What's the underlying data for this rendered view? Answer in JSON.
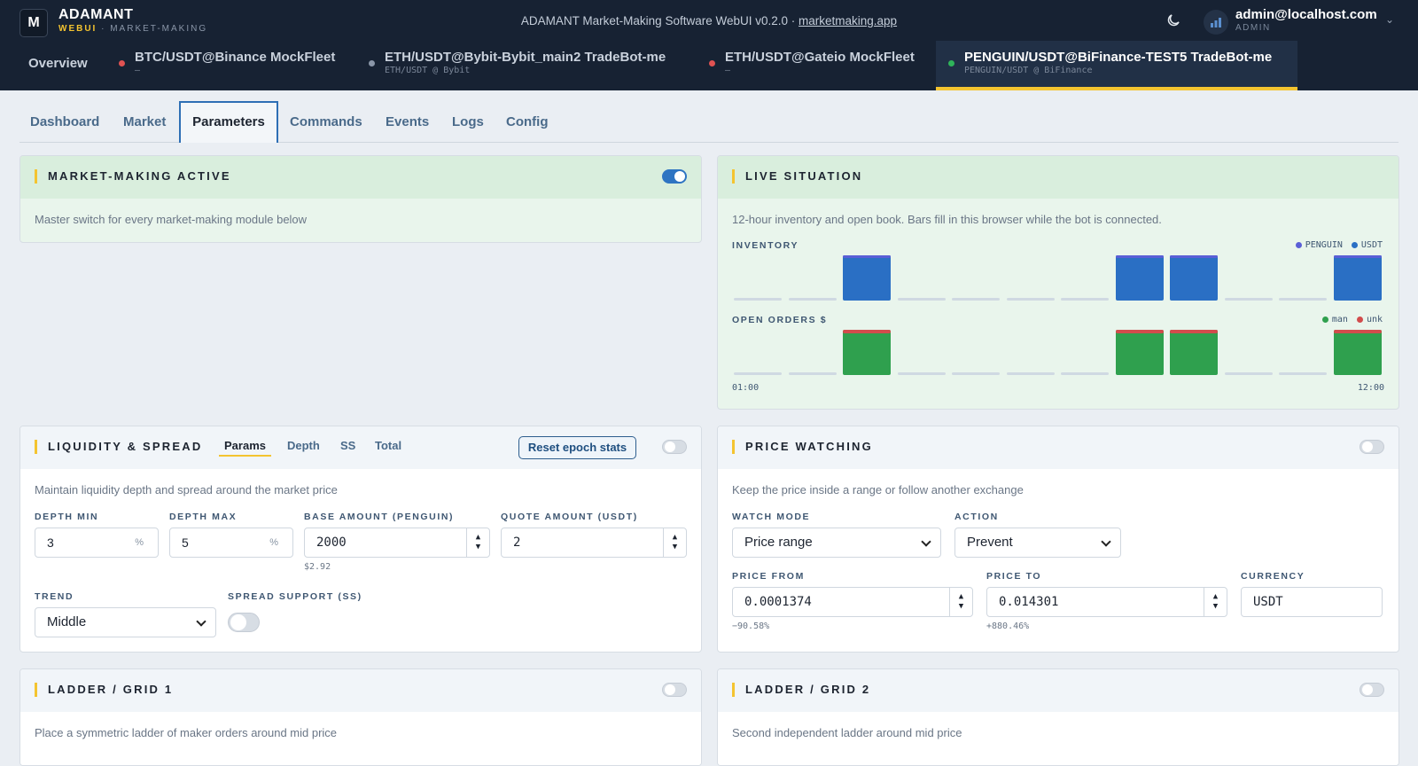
{
  "header": {
    "logo_text": "M",
    "brand": "ADAMANT",
    "brand_sub_highlight": "WEBUI",
    "brand_sub_rest": " · MARKET-MAKING",
    "title_prefix": "ADAMANT Market-Making Software WebUI v0.2.0 · ",
    "title_link": "marketmaking.app",
    "user_name": "admin@localhost.com",
    "user_role": "ADMIN"
  },
  "pair_tabs": {
    "overview": "Overview",
    "items": [
      {
        "title": "BTC/USDT@Binance MockFleet",
        "sub": "—",
        "status_color": "#e05252"
      },
      {
        "title": "ETH/USDT@Bybit-Bybit_main2 TradeBot-me",
        "sub": "ETH/USDT @ Bybit",
        "status_color": "#8a96a8"
      },
      {
        "title": "ETH/USDT@Gateio MockFleet",
        "sub": "—",
        "status_color": "#e05252"
      },
      {
        "title": "PENGUIN/USDT@BiFinance-TEST5 TradeBot-me",
        "sub": "PENGUIN/USDT @ BiFinance",
        "status_color": "#2fb45a"
      }
    ]
  },
  "sub_tabs": [
    "Dashboard",
    "Market",
    "Parameters",
    "Commands",
    "Events",
    "Logs",
    "Config"
  ],
  "mm_active": {
    "title": "MARKET-MAKING ACTIVE",
    "desc": "Master switch for every market-making module below",
    "enabled": true
  },
  "live": {
    "title": "LIVE SITUATION",
    "desc": "12-hour inventory and open book. Bars fill in this browser while the bot is connected.",
    "inventory_label": "INVENTORY",
    "orders_label": "OPEN ORDERS $",
    "legend_inv": [
      {
        "name": "PENGUIN",
        "color": "#5a5fd6"
      },
      {
        "name": "USDT",
        "color": "#2a6fc4"
      }
    ],
    "legend_orders": [
      {
        "name": "man",
        "color": "#2fa04e"
      },
      {
        "name": "unk",
        "color": "#d24c4c"
      }
    ],
    "time_start": "01:00",
    "time_end": "12:00"
  },
  "chart_data": [
    {
      "type": "bar",
      "title": "INVENTORY",
      "categories": [
        "01:00",
        "",
        "",
        "",
        "",
        "",
        "",
        "",
        "",
        "",
        "",
        "12:00"
      ],
      "series": [
        {
          "name": "USDT",
          "values": [
            0,
            0,
            1,
            0,
            0,
            0,
            0,
            1,
            1,
            0,
            0,
            1
          ]
        },
        {
          "name": "PENGUIN",
          "values": [
            0,
            0,
            0.05,
            0,
            0,
            0,
            0,
            0.05,
            0.05,
            0,
            0,
            0.05
          ]
        }
      ]
    },
    {
      "type": "bar",
      "title": "OPEN ORDERS $",
      "categories": [
        "01:00",
        "",
        "",
        "",
        "",
        "",
        "",
        "",
        "",
        "",
        "",
        "12:00"
      ],
      "series": [
        {
          "name": "man",
          "values": [
            0,
            0,
            1,
            0,
            0,
            0,
            0,
            1,
            1,
            0,
            0,
            1
          ]
        },
        {
          "name": "unk",
          "values": [
            0,
            0,
            0.08,
            0,
            0,
            0,
            0,
            0.08,
            0.08,
            0,
            0,
            0.08
          ]
        }
      ]
    }
  ],
  "liquidity": {
    "title": "LIQUIDITY & SPREAD",
    "tabs": [
      "Params",
      "Depth",
      "SS",
      "Total"
    ],
    "reset_label": "Reset epoch stats",
    "desc": "Maintain liquidity depth and spread around the market price",
    "depth_min_label": "DEPTH MIN",
    "depth_min": "3",
    "depth_max_label": "DEPTH MAX",
    "depth_max": "5",
    "percent": "%",
    "base_label": "BASE AMOUNT (PENGUIN)",
    "base": "2000",
    "base_hint": "$2.92",
    "quote_label": "QUOTE AMOUNT (USDT)",
    "quote": "2",
    "trend_label": "TREND",
    "trend": "Middle",
    "ss_label": "SPREAD SUPPORT (SS)"
  },
  "price_watch": {
    "title": "PRICE WATCHING",
    "desc": "Keep the price inside a range or follow another exchange",
    "mode_label": "WATCH MODE",
    "mode": "Price range",
    "action_label": "ACTION",
    "action": "Prevent",
    "from_label": "PRICE FROM",
    "from": "0.0001374",
    "from_hint": "−90.58%",
    "to_label": "PRICE TO",
    "to": "0.014301",
    "to_hint": "+880.46%",
    "currency_label": "CURRENCY",
    "currency": "USDT"
  },
  "ladder1": {
    "title": "LADDER / GRID 1",
    "desc": "Place a symmetric ladder of maker orders around mid price"
  },
  "ladder2": {
    "title": "LADDER / GRID 2",
    "desc": "Second independent ladder around mid price"
  }
}
